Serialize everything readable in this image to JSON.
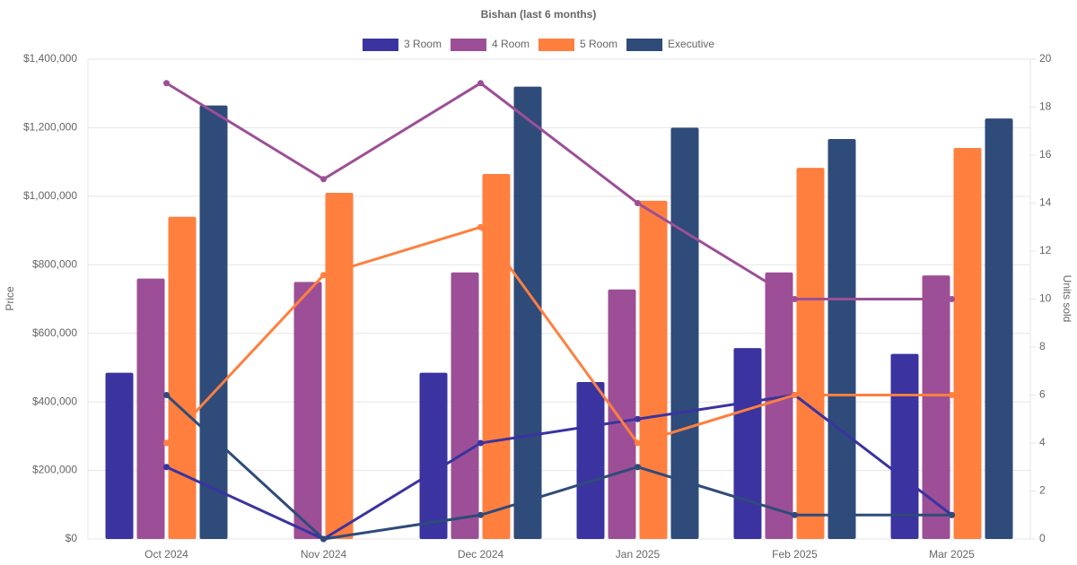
{
  "chart_data": {
    "type": "bar-line",
    "title": "Bishan (last 6 months)",
    "y_label": "Price",
    "y2_label": "Units sold",
    "categories": [
      "Oct 2024",
      "Nov 2024",
      "Dec 2024",
      "Jan 2025",
      "Feb 2025",
      "Mar 2025"
    ],
    "series": [
      {
        "name": "3 Room",
        "color": "#3a33a0",
        "values": [
          485000,
          null,
          485000,
          458000,
          557000,
          540000
        ],
        "units": [
          3,
          0,
          4,
          5,
          6,
          1
        ]
      },
      {
        "name": "4 Room",
        "color": "#9c4f96",
        "values": [
          760000,
          750000,
          778000,
          728000,
          778000,
          769000
        ],
        "units": [
          19,
          15,
          19,
          14,
          10,
          10
        ]
      },
      {
        "name": "5 Room",
        "color": "#ff7f3f",
        "values": [
          940000,
          1010000,
          1065000,
          987000,
          1083000,
          1141000
        ],
        "units": [
          4,
          11,
          13,
          4,
          6,
          6
        ]
      },
      {
        "name": "Executive",
        "color": "#2e4b7a",
        "values": [
          1265000,
          null,
          1320000,
          1200000,
          1167000,
          1227000
        ],
        "units": [
          6,
          0,
          1,
          3,
          1,
          1
        ]
      }
    ],
    "ylim": [
      0,
      1400000
    ],
    "yticks": [
      {
        "value": 0,
        "label": "$0"
      },
      {
        "value": 200000,
        "label": "$200,000"
      },
      {
        "value": 400000,
        "label": "$400,000"
      },
      {
        "value": 600000,
        "label": "$600,000"
      },
      {
        "value": 800000,
        "label": "$800,000"
      },
      {
        "value": 1000000,
        "label": "$1,000,000"
      },
      {
        "value": 1200000,
        "label": "$1,200,000"
      },
      {
        "value": 1400000,
        "label": "$1,400,000"
      }
    ],
    "y2lim": [
      0,
      20
    ],
    "y2ticks": [
      0,
      2,
      4,
      6,
      8,
      10,
      12,
      14,
      16,
      18,
      20
    ],
    "grid": true
  }
}
